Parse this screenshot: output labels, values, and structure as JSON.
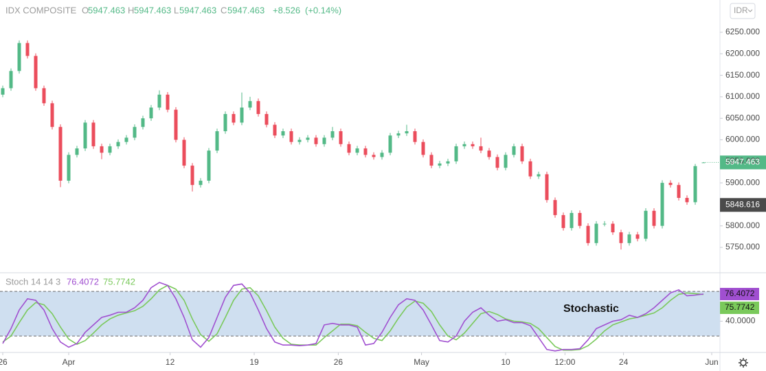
{
  "chart_data": {
    "type": "candlestick",
    "title": "IDX COMPOSITE",
    "header_labels": [
      "O",
      "H",
      "L",
      "C"
    ],
    "change": {
      "value": 8.526,
      "label": "+8.526"
    },
    "change_pct": {
      "value": 0.14,
      "label": "(+0.14%)"
    },
    "currency": "IDR",
    "up_color": "#53b987",
    "down_color": "#eb4d5c",
    "ohlc": [
      [
        6105,
        6126,
        6099,
        6120
      ],
      [
        6120,
        6166,
        6114,
        6160
      ],
      [
        6160,
        6231,
        6154,
        6225
      ],
      [
        6225,
        6231,
        6189,
        6195
      ],
      [
        6195,
        6201,
        6114,
        6120
      ],
      [
        6120,
        6126,
        6079,
        6085
      ],
      [
        6085,
        6091,
        6024,
        6030
      ],
      [
        6030,
        6036,
        5890,
        5905
      ],
      [
        5905,
        5971,
        5899,
        5965
      ],
      [
        5965,
        5986,
        5959,
        5980
      ],
      [
        5980,
        6046,
        5974,
        6040
      ],
      [
        6040,
        6046,
        5979,
        5985
      ],
      [
        5985,
        5991,
        5955,
        5970
      ],
      [
        5970,
        5991,
        5964,
        5985
      ],
      [
        5985,
        6001,
        5979,
        5995
      ],
      [
        5995,
        6011,
        5989,
        6005
      ],
      [
        6005,
        6036,
        5999,
        6030
      ],
      [
        6030,
        6056,
        6024,
        6050
      ],
      [
        6050,
        6081,
        6044,
        6075
      ],
      [
        6075,
        6115,
        6069,
        6105
      ],
      [
        6105,
        6111,
        6064,
        6070
      ],
      [
        6070,
        6076,
        5994,
        6000
      ],
      [
        6000,
        6006,
        5934,
        5940
      ],
      [
        5940,
        5946,
        5880,
        5895
      ],
      [
        5895,
        5911,
        5889,
        5905
      ],
      [
        5905,
        5981,
        5899,
        5975
      ],
      [
        5975,
        6026,
        5969,
        6020
      ],
      [
        6020,
        6066,
        6014,
        6060
      ],
      [
        6060,
        6066,
        6034,
        6040
      ],
      [
        6040,
        6110,
        6034,
        6075
      ],
      [
        6075,
        6100,
        6069,
        6090
      ],
      [
        6090,
        6096,
        6054,
        6060
      ],
      [
        6060,
        6066,
        6029,
        6035
      ],
      [
        6035,
        6041,
        6004,
        6010
      ],
      [
        6010,
        6026,
        6004,
        6020
      ],
      [
        6020,
        6026,
        5989,
        5995
      ],
      [
        5995,
        6006,
        5989,
        6000
      ],
      [
        6000,
        6011,
        5994,
        6005
      ],
      [
        6005,
        6011,
        5984,
        5990
      ],
      [
        5990,
        6011,
        5984,
        6005
      ],
      [
        6005,
        6030,
        5999,
        6020
      ],
      [
        6020,
        6026,
        5984,
        5990
      ],
      [
        5990,
        5996,
        5964,
        5970
      ],
      [
        5970,
        5986,
        5964,
        5980
      ],
      [
        5980,
        5986,
        5959,
        5965
      ],
      [
        5965,
        5971,
        5954,
        5960
      ],
      [
        5960,
        5976,
        5954,
        5970
      ],
      [
        5970,
        6016,
        5964,
        6010
      ],
      [
        6010,
        6021,
        6004,
        6015
      ],
      [
        6015,
        6035,
        6009,
        6020
      ],
      [
        6020,
        6026,
        5989,
        5995
      ],
      [
        5995,
        6001,
        5959,
        5965
      ],
      [
        5965,
        5971,
        5934,
        5940
      ],
      [
        5940,
        5951,
        5934,
        5945
      ],
      [
        5945,
        5956,
        5939,
        5950
      ],
      [
        5950,
        5991,
        5944,
        5985
      ],
      [
        5985,
        5996,
        5979,
        5990
      ],
      [
        5990,
        5996,
        5979,
        5985
      ],
      [
        5985,
        6005,
        5969,
        5975
      ],
      [
        5975,
        5981,
        5954,
        5960
      ],
      [
        5960,
        5966,
        5929,
        5935
      ],
      [
        5935,
        5971,
        5929,
        5965
      ],
      [
        5965,
        5991,
        5959,
        5985
      ],
      [
        5985,
        5991,
        5944,
        5950
      ],
      [
        5950,
        5956,
        5909,
        5915
      ],
      [
        5915,
        5926,
        5909,
        5920
      ],
      [
        5920,
        5926,
        5854,
        5860
      ],
      [
        5860,
        5866,
        5819,
        5825
      ],
      [
        5825,
        5831,
        5789,
        5795
      ],
      [
        5795,
        5836,
        5789,
        5830
      ],
      [
        5830,
        5836,
        5794,
        5800
      ],
      [
        5800,
        5806,
        5754,
        5760
      ],
      [
        5760,
        5811,
        5754,
        5805
      ],
      [
        5805,
        5811,
        5799,
        5805
      ],
      [
        5805,
        5811,
        5779,
        5785
      ],
      [
        5785,
        5791,
        5745,
        5760
      ],
      [
        5760,
        5786,
        5754,
        5780
      ],
      [
        5780,
        5786,
        5764,
        5770
      ],
      [
        5770,
        5841,
        5764,
        5835
      ],
      [
        5835,
        5841,
        5794,
        5800
      ],
      [
        5800,
        5906,
        5794,
        5900
      ],
      [
        5900,
        5906,
        5889,
        5895
      ],
      [
        5895,
        5901,
        5859,
        5865
      ],
      [
        5865,
        5871,
        5849,
        5855
      ],
      [
        5855,
        5944,
        5849,
        5938.937
      ],
      [
        5947.463,
        5947.463,
        5947.463,
        5947.463
      ]
    ],
    "marker_price": 5848.616,
    "xlim": [
      -0.333,
      87
    ],
    "xticks": [
      {
        "value": 0,
        "label": "26"
      },
      {
        "value": 8,
        "label": "Apr"
      },
      {
        "value": 20.3,
        "label": "12"
      },
      {
        "value": 30.5,
        "label": "19"
      },
      {
        "value": 40.7,
        "label": "26"
      },
      {
        "value": 50.8,
        "label": "May"
      },
      {
        "value": 61,
        "label": "10"
      },
      {
        "value": 68.2,
        "label": "12:00"
      },
      {
        "value": 75.3,
        "label": "24"
      },
      {
        "value": 86,
        "label": "Jun"
      }
    ],
    "ylim": [
      5691,
      6325
    ],
    "yticks": [
      {
        "value": 5750,
        "label": "5750.000"
      },
      {
        "value": 5800,
        "label": "5800.000"
      },
      {
        "value": 5850,
        "label": "5850.000"
      },
      {
        "value": 5900,
        "label": "5900.000"
      },
      {
        "value": 5950,
        "label": "5950.000"
      },
      {
        "value": 6000,
        "label": "6000.000"
      },
      {
        "value": 6050,
        "label": "6050.000"
      },
      {
        "value": 6100,
        "label": "6100.000"
      },
      {
        "value": 6150,
        "label": "6150.000"
      },
      {
        "value": 6200,
        "label": "6200.000"
      },
      {
        "value": 6250,
        "label": "6250.000"
      }
    ],
    "indicator": {
      "title": "Stoch 14 14 3",
      "annotation": "Stochastic",
      "ylim": [
        -2,
        105
      ],
      "yticks": [
        {
          "value": 40,
          "label": "40.0000"
        }
      ],
      "bands": [
        20,
        80
      ],
      "band_color": "#cfdff0",
      "series": [
        {
          "color": "#a04fd0",
          "values": [
            10,
            30,
            55,
            70,
            68,
            55,
            30,
            12,
            5,
            10,
            25,
            35,
            45,
            48,
            52,
            52,
            58,
            68,
            85,
            92,
            88,
            70,
            45,
            15,
            5,
            18,
            45,
            72,
            88,
            90,
            78,
            55,
            30,
            12,
            8,
            8,
            7,
            8,
            10,
            35,
            37,
            35,
            35,
            32,
            8,
            10,
            25,
            45,
            62,
            70,
            68,
            55,
            35,
            14,
            12,
            20,
            40,
            52,
            58,
            48,
            40,
            42,
            38,
            38,
            34,
            18,
            2,
            0,
            2,
            2,
            3,
            15,
            30,
            35,
            40,
            42,
            48,
            45,
            50,
            58,
            68,
            78,
            82,
            74,
            75,
            76.4072
          ]
        },
        {
          "color": "#7ac95b",
          "values": [
            12,
            20,
            38,
            55,
            65,
            62,
            50,
            32,
            16,
            9,
            14,
            24,
            35,
            43,
            48,
            51,
            54,
            60,
            70,
            82,
            88,
            83,
            68,
            43,
            22,
            13,
            23,
            45,
            68,
            83,
            85,
            74,
            54,
            32,
            17,
            9,
            8,
            8,
            8,
            18,
            27,
            36,
            36,
            34,
            25,
            17,
            14,
            27,
            44,
            59,
            67,
            64,
            53,
            35,
            20,
            15,
            24,
            37,
            50,
            53,
            49,
            43,
            40,
            39,
            37,
            30,
            18,
            6,
            1,
            1,
            2,
            7,
            16,
            27,
            35,
            39,
            43,
            45,
            48,
            51,
            58,
            68,
            76,
            78,
            77,
            75.7742
          ]
        }
      ]
    }
  }
}
